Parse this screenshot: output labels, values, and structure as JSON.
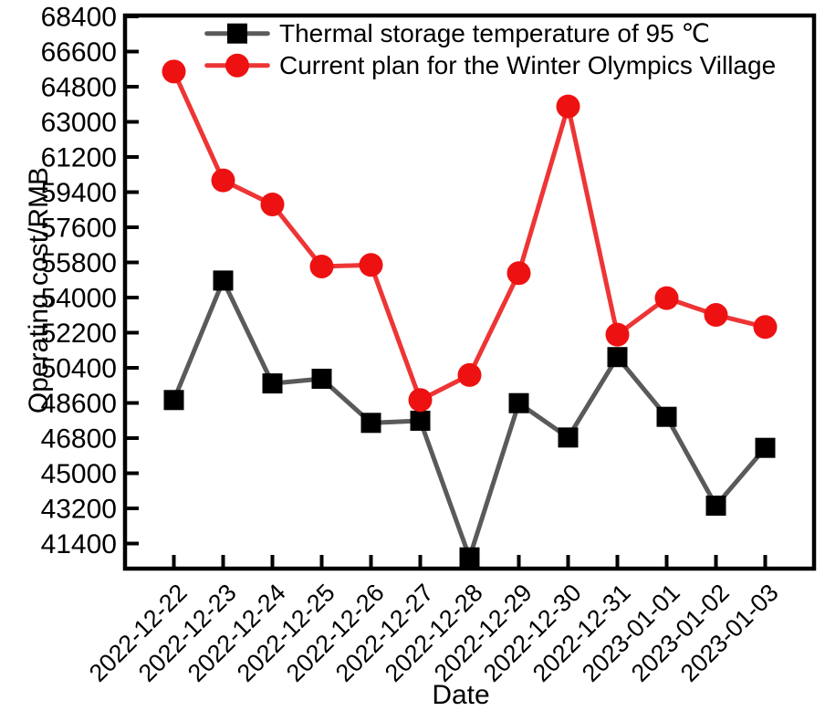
{
  "chart_data": {
    "type": "line",
    "title": "",
    "xlabel": "Date",
    "ylabel": "Operating cost/RMB",
    "grid": false,
    "legend_position": "top-center-inside",
    "categories": [
      "2022-12-22",
      "2022-12-23",
      "2022-12-24",
      "2022-12-25",
      "2022-12-26",
      "2022-12-27",
      "2022-12-28",
      "2022-12-29",
      "2022-12-30",
      "2022-12-31",
      "2023-01-01",
      "2023-01-02",
      "2023-01-03"
    ],
    "y_ticks": [
      68400,
      66600,
      64800,
      63000,
      61200,
      59400,
      57600,
      55800,
      54000,
      52200,
      50400,
      48600,
      46800,
      45000,
      43200,
      41400
    ],
    "ylim": [
      40100,
      68400
    ],
    "series": [
      {
        "id": "thermal-storage-95c",
        "name": "Thermal storage temperature of 95 ℃",
        "marker": "square",
        "line_color": "#5a5a5a",
        "marker_color": "#000000",
        "values": [
          48750,
          54870,
          49600,
          49840,
          47580,
          47690,
          40690,
          48590,
          46830,
          50950,
          47890,
          43340,
          46300
        ]
      },
      {
        "id": "winter-olympics-plan",
        "name": "Current plan for the Winter Olympics Village",
        "marker": "circle",
        "line_color": "#ee3535",
        "marker_color": "#ee1111",
        "values": [
          65580,
          60000,
          58770,
          55590,
          55670,
          48750,
          50030,
          55250,
          63790,
          52100,
          53970,
          53110,
          52490
        ]
      }
    ]
  }
}
